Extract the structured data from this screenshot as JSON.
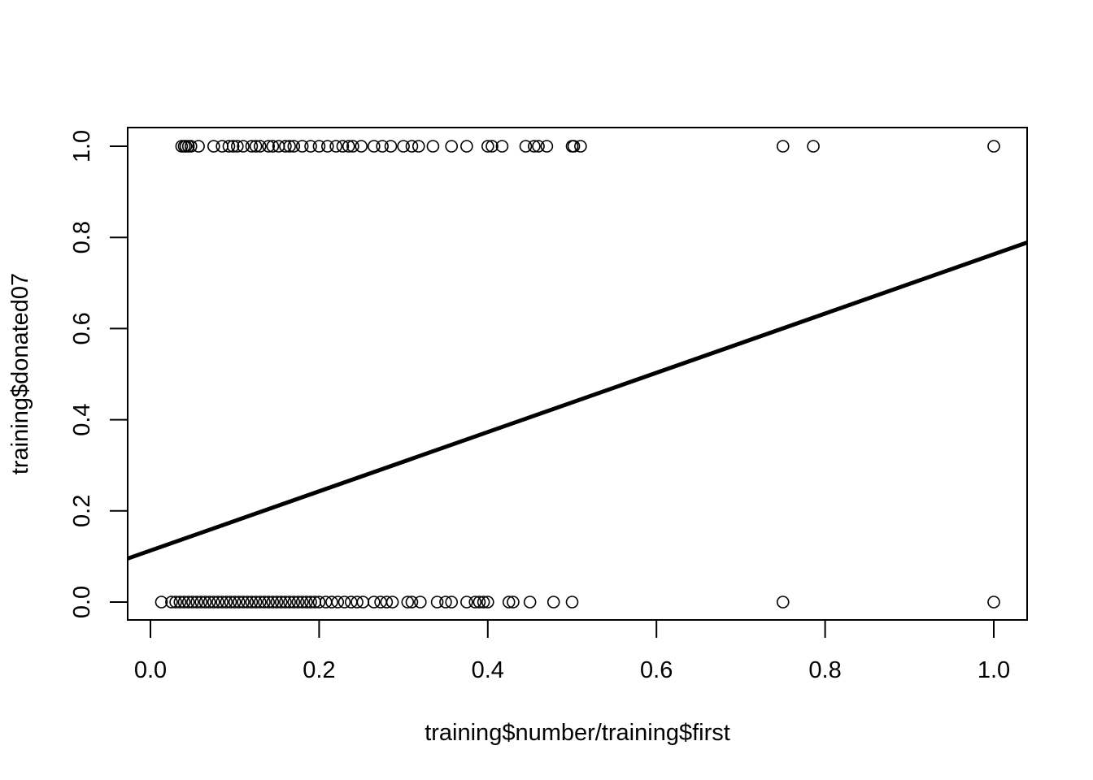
{
  "chart_data": {
    "type": "scatter",
    "title": "",
    "xlabel": "training$number/training$first",
    "ylabel": "training$donated07",
    "xlim": [
      -0.027,
      1.04
    ],
    "ylim": [
      -0.04,
      1.04
    ],
    "xticks": [
      "0.0",
      "0.2",
      "0.4",
      "0.6",
      "0.8",
      "1.0"
    ],
    "yticks": [
      "0.0",
      "0.2",
      "0.4",
      "0.6",
      "0.8",
      "1.0"
    ],
    "grid": false,
    "legend": "none",
    "series": [
      {
        "points_y1": [
          0.037,
          0.04,
          0.042,
          0.045,
          0.048,
          0.057,
          0.075,
          0.085,
          0.093,
          0.098,
          0.103,
          0.11,
          0.12,
          0.125,
          0.13,
          0.14,
          0.145,
          0.152,
          0.16,
          0.165,
          0.17,
          0.18,
          0.19,
          0.2,
          0.21,
          0.22,
          0.228,
          0.235,
          0.24,
          0.25,
          0.265,
          0.275,
          0.285,
          0.3,
          0.31,
          0.318,
          0.335,
          0.357,
          0.375,
          0.4,
          0.405,
          0.417,
          0.445,
          0.455,
          0.46,
          0.47,
          0.5,
          0.502,
          0.51,
          0.75,
          0.786,
          1.0
        ],
        "points_y0": [
          0.013,
          0.025,
          0.03,
          0.035,
          0.04,
          0.045,
          0.05,
          0.055,
          0.06,
          0.065,
          0.07,
          0.075,
          0.08,
          0.085,
          0.09,
          0.095,
          0.1,
          0.105,
          0.11,
          0.115,
          0.12,
          0.125,
          0.13,
          0.135,
          0.14,
          0.145,
          0.15,
          0.155,
          0.16,
          0.165,
          0.17,
          0.175,
          0.18,
          0.185,
          0.19,
          0.195,
          0.2,
          0.208,
          0.215,
          0.222,
          0.23,
          0.238,
          0.245,
          0.252,
          0.265,
          0.273,
          0.28,
          0.287,
          0.305,
          0.31,
          0.32,
          0.34,
          0.35,
          0.357,
          0.375,
          0.385,
          0.39,
          0.395,
          0.4,
          0.425,
          0.43,
          0.45,
          0.478,
          0.5,
          0.75,
          1.0
        ]
      }
    ],
    "fit_line": {
      "intercept": 0.113,
      "slope": 0.65
    }
  }
}
